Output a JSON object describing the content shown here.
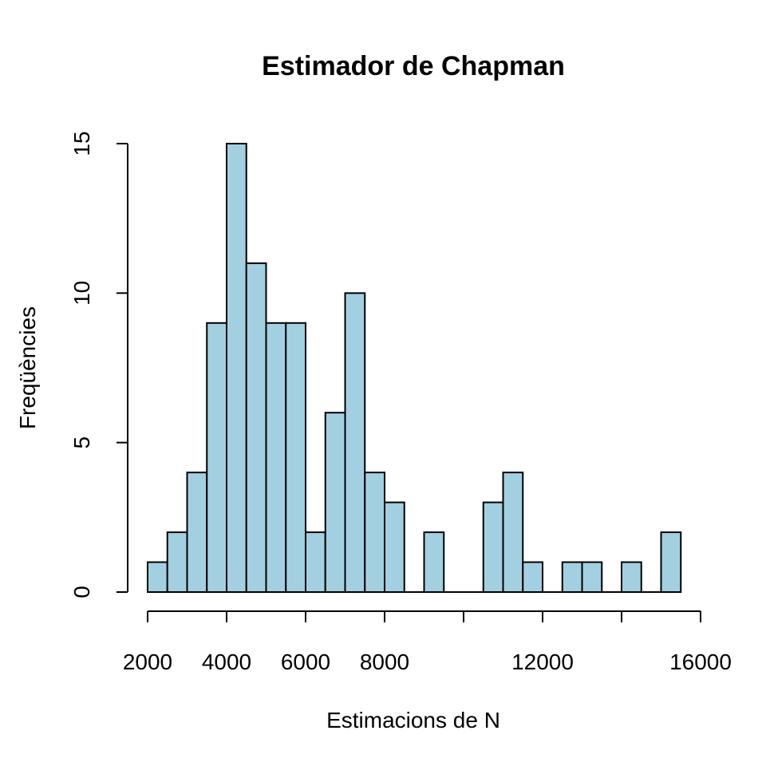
{
  "chart_data": {
    "type": "bar",
    "title": "Estimador de Chapman",
    "xlabel": "Estimacions de N",
    "ylabel": "Freqüències",
    "bar_color": "#a3d0e1",
    "bin_edges": [
      2000,
      2500,
      3000,
      3500,
      4000,
      4500,
      5000,
      5500,
      6000,
      6500,
      7000,
      7500,
      8000,
      8500,
      9000,
      9500,
      10000,
      10500,
      11000,
      11500,
      12000,
      12500,
      13000,
      13500,
      14000,
      14500,
      15000,
      15500
    ],
    "values": [
      1,
      2,
      4,
      9,
      15,
      11,
      9,
      9,
      2,
      6,
      10,
      4,
      3,
      0,
      2,
      0,
      0,
      3,
      4,
      1,
      0,
      1,
      1,
      0,
      1,
      0,
      2
    ],
    "xlim": [
      2000,
      16000
    ],
    "ylim": [
      0,
      15
    ],
    "x_ticks": [
      2000,
      4000,
      6000,
      8000,
      10000,
      12000,
      14000,
      16000
    ],
    "x_tick_labels": [
      "2000",
      "4000",
      "6000",
      "8000",
      "",
      "12000",
      "",
      "16000"
    ],
    "y_ticks": [
      0,
      5,
      10,
      15
    ],
    "y_tick_labels": [
      "0",
      "5",
      "10",
      "15"
    ],
    "grid": false,
    "legend": "none"
  }
}
